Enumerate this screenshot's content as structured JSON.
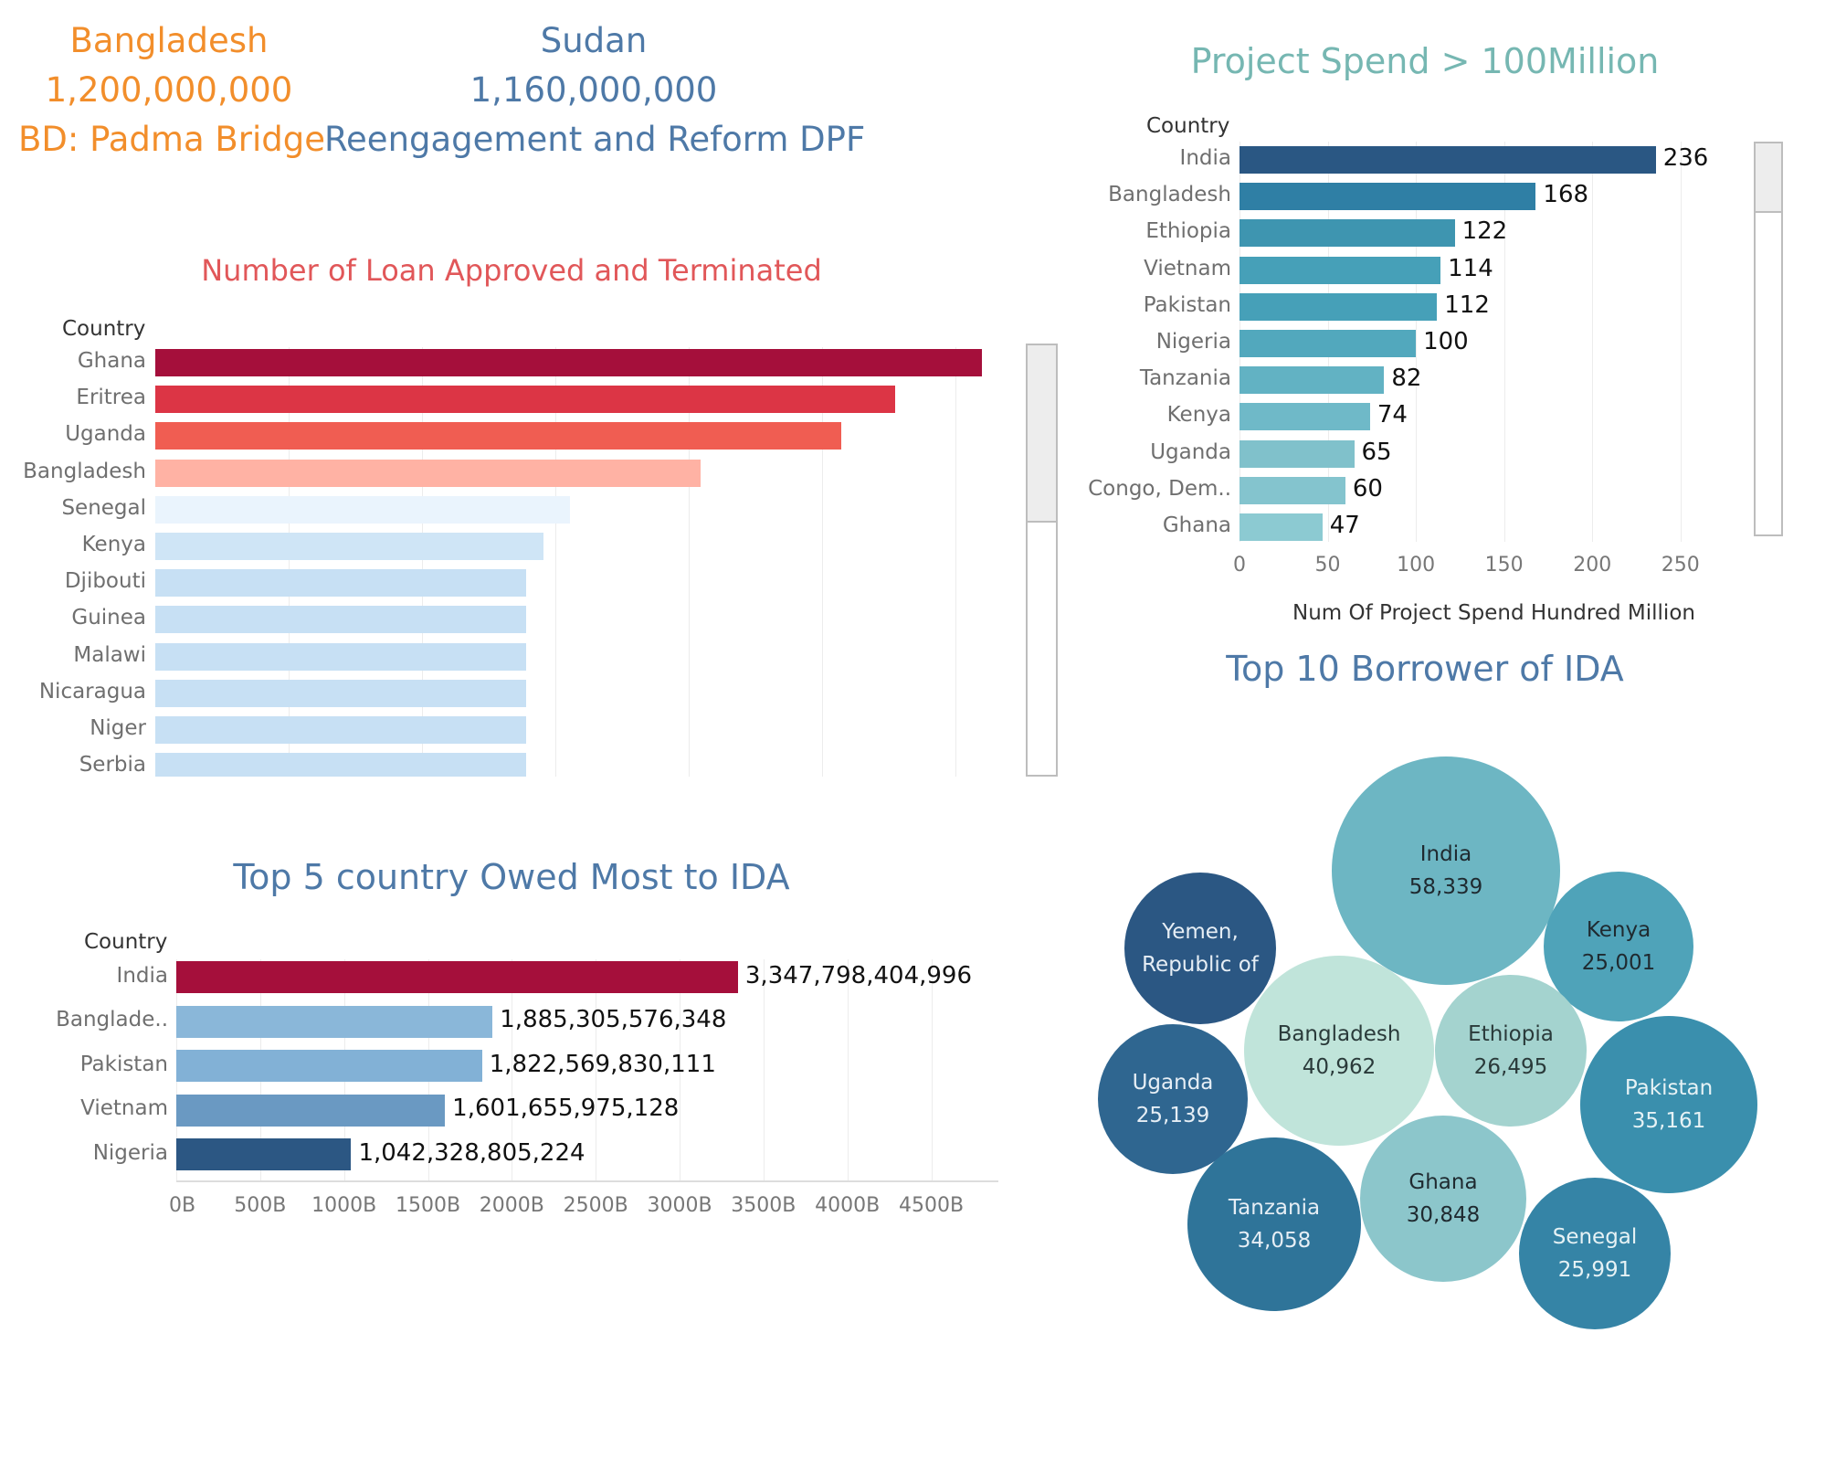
{
  "kpis": [
    {
      "country": "Bangladesh",
      "amount": "1,200,000,000",
      "project": "BD: Padma Bridge",
      "color": "#f28e2b"
    },
    {
      "country": "Sudan",
      "amount": "1,160,000,000",
      "project": "Reengagement and Reform DPF",
      "color": "#4e79a7"
    }
  ],
  "charts": {
    "spend": {
      "title": "Project Spend > 100Million",
      "title_color": "#76b7b2",
      "axis_header": "Country",
      "xlabel": "Num Of Project Spend Hundred Million",
      "ticks": [
        "0",
        "50",
        "100",
        "150",
        "200",
        "250"
      ]
    },
    "loans": {
      "title": "Number of Loan Approved and Terminated",
      "title_color": "#e15759",
      "axis_header": "Country"
    },
    "owed": {
      "title": "Top 5 country Owed Most to IDA",
      "title_color": "#4e79a7",
      "axis_header": "Country",
      "ticks": [
        "0B",
        "500B",
        "1000B",
        "1500B",
        "2000B",
        "2500B",
        "3000B",
        "3500B",
        "4000B",
        "4500B"
      ]
    },
    "borrowers": {
      "title": "Top 10 Borrower of IDA",
      "title_color": "#4e79a7"
    }
  },
  "chart_data": [
    {
      "id": "spend",
      "type": "bar",
      "orientation": "horizontal",
      "title": "Project Spend > 100Million",
      "ylabel": "Country",
      "xlabel": "Num Of Project Spend Hundred Million",
      "xlim": [
        0,
        290
      ],
      "grid": true,
      "categories": [
        "India",
        "Bangladesh",
        "Ethiopia",
        "Vietnam",
        "Pakistan",
        "Nigeria",
        "Tanzania",
        "Kenya",
        "Uganda",
        "Congo, Dem..",
        "Ghana"
      ],
      "values": [
        236,
        168,
        122,
        114,
        112,
        100,
        82,
        74,
        65,
        60,
        47
      ],
      "colors": [
        "#2a5783",
        "#2f7fa5",
        "#3e95b0",
        "#46a0b8",
        "#46a0b8",
        "#52a8bd",
        "#62b2c3",
        "#6fb9c8",
        "#80c1cb",
        "#84c4ce",
        "#8ccad2"
      ]
    },
    {
      "id": "loans",
      "type": "bar",
      "orientation": "horizontal",
      "title": "Number of Loan Approved and Terminated",
      "ylabel": "Country",
      "xlim": [
        0,
        6.8
      ],
      "grid": true,
      "categories": [
        "Ghana",
        "Eritrea",
        "Uganda",
        "Bangladesh",
        "Senegal",
        "Kenya",
        "Djibouti",
        "Guinea",
        "Malawi",
        "Nicaragua",
        "Niger",
        "Serbia"
      ],
      "values": [
        6.2,
        5.55,
        5.14,
        4.09,
        3.11,
        2.91,
        2.78,
        2.78,
        2.78,
        2.78,
        2.78,
        2.78
      ],
      "colors": [
        "#a50f3b",
        "#dc3545",
        "#f05d52",
        "#ffb2a4",
        "#eaf4fd",
        "#cfe5f6",
        "#c7e0f4",
        "#c7e0f4",
        "#c7e0f4",
        "#c7e0f4",
        "#c7e0f4",
        "#c7e0f4"
      ]
    },
    {
      "id": "owed",
      "type": "bar",
      "orientation": "horizontal",
      "title": "Top 5 country Owed Most to IDA",
      "ylabel": "Country",
      "xlim": [
        0,
        4900000000000
      ],
      "grid": true,
      "categories": [
        "India",
        "Banglade..",
        "Pakistan",
        "Vietnam",
        "Nigeria"
      ],
      "values": [
        3347798404996,
        1885305576348,
        1822569830111,
        1601655975128,
        1042328805224
      ],
      "value_labels": [
        "3,347,798,404,996",
        "1,885,305,576,348",
        "1,822,569,830,111",
        "1,601,655,975,128",
        "1,042,328,805,224"
      ],
      "colors": [
        "#a50f3b",
        "#8ab7d9",
        "#82b1d6",
        "#6a99c2",
        "#2c5783"
      ]
    },
    {
      "id": "borrowers",
      "type": "bubble",
      "title": "Top 10 Borrower of IDA",
      "items": [
        {
          "name": "India",
          "value_label": "58,339",
          "color": "#6db6c3",
          "text_color": "#1f2a30"
        },
        {
          "name": "Yemen,\nRepublic of",
          "value_label": "",
          "color": "#2b5783",
          "text_color": "#e6eef5"
        },
        {
          "name": "Kenya",
          "value_label": "25,001",
          "color": "#4fa3b9",
          "text_color": "#1f2a30"
        },
        {
          "name": "Bangladesh",
          "value_label": "40,962",
          "color": "#c0e4da",
          "text_color": "#2a3a3a"
        },
        {
          "name": "Ethiopia",
          "value_label": "26,495",
          "color": "#a4d3cf",
          "text_color": "#2a3a3a"
        },
        {
          "name": "Uganda",
          "value_label": "25,139",
          "color": "#2f6690",
          "text_color": "#e6eef5"
        },
        {
          "name": "Pakistan",
          "value_label": "35,161",
          "color": "#3a8fad",
          "text_color": "#e6f2f5"
        },
        {
          "name": "Ghana",
          "value_label": "30,848",
          "color": "#8cc6cb",
          "text_color": "#1f2a30"
        },
        {
          "name": "Tanzania",
          "value_label": "34,058",
          "color": "#2f7499",
          "text_color": "#e6eef5"
        },
        {
          "name": "Senegal",
          "value_label": "25,991",
          "color": "#3584a6",
          "text_color": "#e6f2f5"
        }
      ]
    }
  ]
}
